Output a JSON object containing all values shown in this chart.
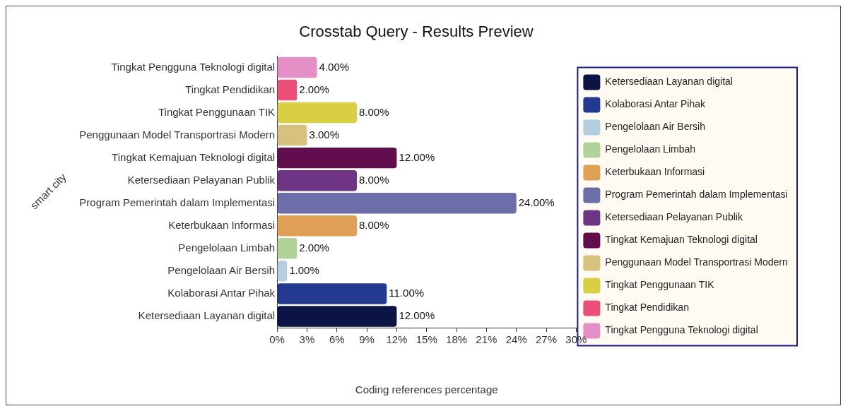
{
  "chart_data": {
    "type": "bar",
    "orientation": "horizontal",
    "stacked": true,
    "title": "Crosstab Query - Results Preview",
    "xlabel": "Coding references percentage",
    "ylabel": "smart city",
    "categories": [
      "Tingkat Pengguna Teknologi digital",
      "Tingkat Pendidikan",
      "Tingkat Penggunaan TIK",
      "Penggunaan Model Transportrasi Modern",
      "Tingkat Kemajuan Teknologi digital",
      "Ketersediaan Pelayanan Publik",
      "Program Pemerintah dalam Implementasi",
      "Keterbukaan Informasi",
      "Pengelolaan Limbah",
      "Pengelolaan Air Bersih",
      "Kolaborasi Antar Pihak",
      "Ketersediaan Layanan digital"
    ],
    "series": [
      {
        "name": "Ketersediaan Layanan digital",
        "color": "#0c1445",
        "values": [
          null,
          null,
          null,
          null,
          null,
          null,
          null,
          null,
          null,
          null,
          null,
          12
        ],
        "value_labels": [
          null,
          null,
          null,
          null,
          null,
          null,
          null,
          null,
          null,
          null,
          null,
          "12.00%"
        ]
      },
      {
        "name": "Kolaborasi Antar Pihak",
        "color": "#223a8f",
        "values": [
          null,
          null,
          null,
          null,
          null,
          null,
          null,
          null,
          null,
          null,
          11,
          null
        ],
        "value_labels": [
          null,
          null,
          null,
          null,
          null,
          null,
          null,
          null,
          null,
          null,
          "11.00%",
          null
        ]
      },
      {
        "name": "Pengelolaan Air Bersih",
        "color": "#b3cfdf",
        "values": [
          null,
          null,
          null,
          null,
          null,
          null,
          null,
          null,
          null,
          1,
          null,
          null
        ],
        "value_labels": [
          null,
          null,
          null,
          null,
          null,
          null,
          null,
          null,
          null,
          "1.00%",
          null,
          null
        ]
      },
      {
        "name": "Pengelolaan Limbah",
        "color": "#b0d39a",
        "values": [
          null,
          null,
          null,
          null,
          null,
          null,
          null,
          null,
          2,
          null,
          null,
          null
        ],
        "value_labels": [
          null,
          null,
          null,
          null,
          null,
          null,
          null,
          null,
          "2.00%",
          null,
          null,
          null
        ]
      },
      {
        "name": "Keterbukaan Informasi",
        "color": "#e0a055",
        "values": [
          null,
          null,
          null,
          null,
          null,
          null,
          null,
          8,
          null,
          null,
          null,
          null
        ],
        "value_labels": [
          null,
          null,
          null,
          null,
          null,
          null,
          null,
          "8.00%",
          null,
          null,
          null,
          null
        ]
      },
      {
        "name": "Program Pemerintah dalam Implementasi",
        "color": "#6b6ea8",
        "values": [
          null,
          null,
          null,
          null,
          null,
          null,
          24,
          null,
          null,
          null,
          null,
          null
        ],
        "value_labels": [
          null,
          null,
          null,
          null,
          null,
          null,
          "24.00%",
          null,
          null,
          null,
          null,
          null
        ]
      },
      {
        "name": "Ketersediaan Pelayanan Publik",
        "color": "#6f3585",
        "values": [
          null,
          null,
          null,
          null,
          null,
          8,
          null,
          null,
          null,
          null,
          null,
          null
        ],
        "value_labels": [
          null,
          null,
          null,
          null,
          null,
          "8.00%",
          null,
          null,
          null,
          null,
          null,
          null
        ]
      },
      {
        "name": "Tingkat Kemajuan Teknologi digital",
        "color": "#620d4d",
        "values": [
          null,
          null,
          null,
          null,
          12,
          null,
          null,
          null,
          null,
          null,
          null,
          null
        ],
        "value_labels": [
          null,
          null,
          null,
          null,
          "12.00%",
          null,
          null,
          null,
          null,
          null,
          null,
          null
        ]
      },
      {
        "name": "Penggunaan Model Transportrasi Modern",
        "color": "#d6c27e",
        "values": [
          null,
          null,
          null,
          3,
          null,
          null,
          null,
          null,
          null,
          null,
          null,
          null
        ],
        "value_labels": [
          null,
          null,
          null,
          "3.00%",
          null,
          null,
          null,
          null,
          null,
          null,
          null,
          null
        ]
      },
      {
        "name": "Tingkat Penggunaan TIK",
        "color": "#d9cf45",
        "values": [
          null,
          null,
          8,
          null,
          null,
          null,
          null,
          null,
          null,
          null,
          null,
          null
        ],
        "value_labels": [
          null,
          null,
          "8.00%",
          null,
          null,
          null,
          null,
          null,
          null,
          null,
          null,
          null
        ]
      },
      {
        "name": "Tingkat Pendidikan",
        "color": "#eb4f7a",
        "values": [
          null,
          2,
          null,
          null,
          null,
          null,
          null,
          null,
          null,
          null,
          null,
          null
        ],
        "value_labels": [
          null,
          "2.00%",
          null,
          null,
          null,
          null,
          null,
          null,
          null,
          null,
          null,
          null
        ]
      },
      {
        "name": "Tingkat Pengguna Teknologi digital",
        "color": "#e48fc6",
        "values": [
          4,
          null,
          null,
          null,
          null,
          null,
          null,
          null,
          null,
          null,
          null,
          null
        ],
        "value_labels": [
          "4.00%",
          null,
          null,
          null,
          null,
          null,
          null,
          null,
          null,
          null,
          null,
          null
        ]
      }
    ],
    "xlim": [
      0,
      30
    ],
    "xticks": [
      {
        "value": 0,
        "label": "0%"
      },
      {
        "value": 3,
        "label": "3%"
      },
      {
        "value": 6,
        "label": "6%"
      },
      {
        "value": 9,
        "label": "9%"
      },
      {
        "value": 12,
        "label": "12%"
      },
      {
        "value": 15,
        "label": "15%"
      },
      {
        "value": 18,
        "label": "18%"
      },
      {
        "value": 21,
        "label": "21%"
      },
      {
        "value": 24,
        "label": "24%"
      },
      {
        "value": 27,
        "label": "27%"
      },
      {
        "value": 30,
        "label": "30%"
      }
    ],
    "grid": false,
    "legend": "right"
  }
}
